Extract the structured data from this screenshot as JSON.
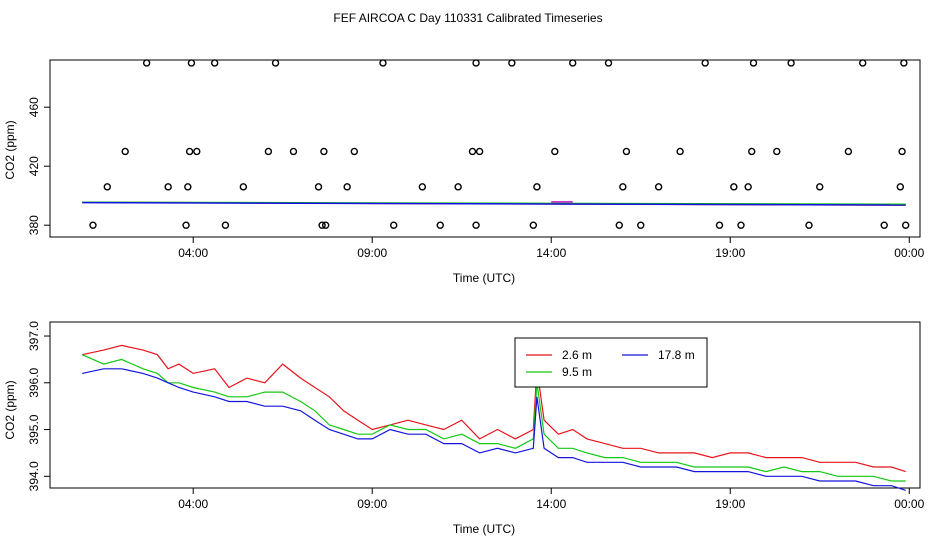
{
  "title": "FEF AIRCOA C  Day 110331  Calibrated Timeseries",
  "colors": {
    "red": "#e8141c",
    "green": "#14c814",
    "blue": "#1414dc",
    "magenta": "#c814c8",
    "axis": "#000000"
  },
  "chart_data": [
    {
      "type": "scatter",
      "xlabel": "Time (UTC)",
      "ylabel": "CO2 (ppm)",
      "xlim": [
        0.0,
        24.3
      ],
      "ylim": [
        372,
        492
      ],
      "xticks": [
        {
          "value": 4,
          "label": "04:00"
        },
        {
          "value": 9,
          "label": "09:00"
        },
        {
          "value": 14,
          "label": "14:00"
        },
        {
          "value": 19,
          "label": "19:00"
        },
        {
          "value": 24,
          "label": "00:00"
        }
      ],
      "yticks": [
        {
          "value": 380,
          "label": "380"
        },
        {
          "value": 420,
          "label": "420"
        },
        {
          "value": 460,
          "label": "460"
        }
      ],
      "circle_points": {
        "x": [
          1.2,
          1.6,
          2.1,
          2.7,
          3.3,
          3.8,
          3.85,
          3.9,
          3.95,
          4.1,
          4.6,
          4.9,
          5.4,
          6.1,
          6.3,
          6.8,
          7.5,
          7.6,
          7.65,
          7.7,
          8.3,
          8.5,
          9.3,
          9.6,
          10.4,
          10.9,
          11.4,
          11.8,
          11.9,
          11.9,
          12.0,
          12.9,
          13.5,
          13.6,
          14.1,
          14.6,
          15.6,
          15.9,
          16.0,
          16.1,
          16.5,
          17.0,
          17.6,
          18.3,
          18.7,
          19.1,
          19.3,
          19.5,
          19.6,
          19.65,
          20.3,
          20.7,
          21.2,
          21.5,
          22.3,
          22.7,
          23.3,
          23.75,
          23.8,
          23.85,
          23.9
        ],
        "y": [
          380,
          406,
          430,
          490,
          406,
          380,
          406,
          430,
          490,
          430,
          490,
          380,
          406,
          430,
          490,
          430,
          406,
          380,
          430,
          380,
          406,
          430,
          490,
          380,
          406,
          380,
          406,
          430,
          490,
          380,
          430,
          490,
          380,
          406,
          430,
          490,
          490,
          380,
          406,
          430,
          380,
          406,
          430,
          490,
          380,
          406,
          380,
          406,
          430,
          490,
          430,
          490,
          380,
          406,
          430,
          490,
          380,
          406,
          430,
          490,
          380
        ]
      },
      "line_series": [
        {
          "name": "2.6 m",
          "color": "#e8141c",
          "x": [
            0.9,
            23.9
          ],
          "y": [
            395.5,
            393.6
          ]
        },
        {
          "name": "9.5 m",
          "color": "#14c814",
          "x": [
            0.9,
            23.9
          ],
          "y": [
            395.6,
            394.2
          ]
        },
        {
          "name": "17.8 m",
          "color": "#1414dc",
          "x": [
            0.9,
            23.9
          ],
          "y": [
            395.3,
            393.7
          ]
        },
        {
          "name": "magenta",
          "color": "#c814c8",
          "x": [
            14.0,
            14.6
          ],
          "y": [
            395.8,
            395.8
          ]
        }
      ]
    },
    {
      "type": "line",
      "xlabel": "Time (UTC)",
      "ylabel": "CO2 (ppm)",
      "xlim": [
        0.0,
        24.3
      ],
      "ylim": [
        393.75,
        397.3
      ],
      "xticks": [
        {
          "value": 4,
          "label": "04:00"
        },
        {
          "value": 9,
          "label": "09:00"
        },
        {
          "value": 14,
          "label": "14:00"
        },
        {
          "value": 19,
          "label": "19:00"
        },
        {
          "value": 24,
          "label": "00:00"
        }
      ],
      "yticks": [
        {
          "value": 394.0,
          "label": "394.0"
        },
        {
          "value": 395.0,
          "label": "395.0"
        },
        {
          "value": 396.0,
          "label": "396.0"
        },
        {
          "value": 397.0,
          "label": "397.0"
        }
      ],
      "legend": {
        "position": "top-center",
        "entries": [
          "2.6 m",
          "17.8 m",
          "9.5 m"
        ]
      },
      "series": [
        {
          "name": "2.6 m",
          "color": "#e8141c",
          "x": [
            0.9,
            1.5,
            2.0,
            2.6,
            3.0,
            3.3,
            3.6,
            4.0,
            4.6,
            5.0,
            5.5,
            6.0,
            6.5,
            7.0,
            7.4,
            7.8,
            8.2,
            8.6,
            9.0,
            9.5,
            10.0,
            10.5,
            11.0,
            11.5,
            12.0,
            12.5,
            13.0,
            13.5,
            13.6,
            13.8,
            14.2,
            14.6,
            15.0,
            15.5,
            16.0,
            16.5,
            17.0,
            17.5,
            18.0,
            18.5,
            19.0,
            19.5,
            20.0,
            20.5,
            21.0,
            21.5,
            22.0,
            22.5,
            23.0,
            23.5,
            23.9
          ],
          "y": [
            396.6,
            396.7,
            396.8,
            396.7,
            396.6,
            396.3,
            396.4,
            396.2,
            396.3,
            395.9,
            396.1,
            396.0,
            396.4,
            396.1,
            395.9,
            395.7,
            395.4,
            395.2,
            395.0,
            395.1,
            395.2,
            395.1,
            395.0,
            395.2,
            394.8,
            395.0,
            394.8,
            395.0,
            396.3,
            395.2,
            394.9,
            395.0,
            394.8,
            394.7,
            394.6,
            394.6,
            394.5,
            394.5,
            394.5,
            394.4,
            394.5,
            394.5,
            394.4,
            394.4,
            394.4,
            394.3,
            394.3,
            394.3,
            394.2,
            394.2,
            394.1
          ]
        },
        {
          "name": "9.5 m",
          "color": "#14c814",
          "x": [
            0.9,
            1.5,
            2.0,
            2.6,
            3.0,
            3.3,
            3.6,
            4.0,
            4.6,
            5.0,
            5.5,
            6.0,
            6.5,
            7.0,
            7.4,
            7.8,
            8.2,
            8.6,
            9.0,
            9.5,
            10.0,
            10.5,
            11.0,
            11.5,
            12.0,
            12.5,
            13.0,
            13.5,
            13.6,
            13.8,
            14.2,
            14.6,
            15.0,
            15.5,
            16.0,
            16.5,
            17.0,
            17.5,
            18.0,
            18.5,
            19.0,
            19.5,
            20.0,
            20.5,
            21.0,
            21.5,
            22.0,
            22.5,
            23.0,
            23.5,
            23.9
          ],
          "y": [
            396.6,
            396.4,
            396.5,
            396.3,
            396.2,
            396.0,
            396.0,
            395.9,
            395.8,
            395.7,
            395.7,
            395.8,
            395.8,
            395.6,
            395.4,
            395.1,
            395.0,
            394.9,
            394.9,
            395.1,
            395.0,
            395.0,
            394.8,
            394.9,
            394.7,
            394.7,
            394.6,
            394.8,
            396.0,
            394.9,
            394.6,
            394.6,
            394.5,
            394.4,
            394.4,
            394.3,
            394.3,
            394.3,
            394.2,
            394.2,
            394.2,
            394.2,
            394.1,
            394.2,
            394.1,
            394.1,
            394.0,
            394.0,
            394.0,
            393.9,
            393.9
          ]
        },
        {
          "name": "17.8 m",
          "color": "#1414dc",
          "x": [
            0.9,
            1.5,
            2.0,
            2.6,
            3.0,
            3.3,
            3.6,
            4.0,
            4.6,
            5.0,
            5.5,
            6.0,
            6.5,
            7.0,
            7.4,
            7.8,
            8.2,
            8.6,
            9.0,
            9.5,
            10.0,
            10.5,
            11.0,
            11.5,
            12.0,
            12.5,
            13.0,
            13.5,
            13.6,
            13.8,
            14.2,
            14.6,
            15.0,
            15.5,
            16.0,
            16.5,
            17.0,
            17.5,
            18.0,
            18.5,
            19.0,
            19.5,
            20.0,
            20.5,
            21.0,
            21.5,
            22.0,
            22.5,
            23.0,
            23.5,
            23.9
          ],
          "y": [
            396.2,
            396.3,
            396.3,
            396.2,
            396.1,
            396.0,
            395.9,
            395.8,
            395.7,
            395.6,
            395.6,
            395.5,
            395.5,
            395.4,
            395.2,
            395.0,
            394.9,
            394.8,
            394.8,
            395.0,
            394.9,
            394.9,
            394.7,
            394.7,
            394.5,
            394.6,
            394.5,
            394.6,
            395.7,
            394.6,
            394.4,
            394.4,
            394.3,
            394.3,
            394.3,
            394.2,
            394.2,
            394.2,
            394.1,
            394.1,
            394.1,
            394.1,
            394.0,
            394.0,
            394.0,
            393.9,
            393.9,
            393.9,
            393.8,
            393.8,
            393.7
          ]
        }
      ]
    }
  ]
}
